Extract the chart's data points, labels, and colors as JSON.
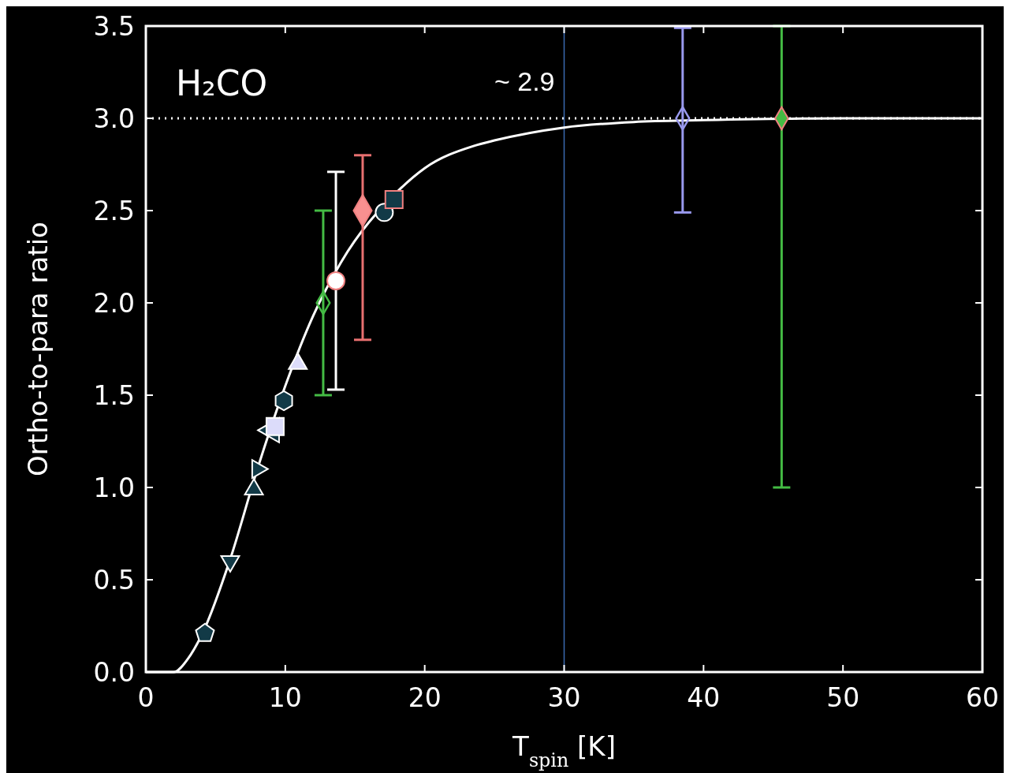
{
  "chart_data": {
    "type": "scatter",
    "xlabel": "T$_{spin}$ [K]",
    "ylabel": "Ortho-to-para ratio",
    "xlim": [
      0,
      60
    ],
    "ylim": [
      0,
      3.5
    ],
    "xticks": [
      0,
      10,
      20,
      30,
      40,
      50,
      60
    ],
    "yticks": [
      {
        "value": 0,
        "label": "0.0"
      },
      {
        "value": 0.5,
        "label": "0.5"
      },
      {
        "value": 1,
        "label": "1.0"
      },
      {
        "value": 1.5,
        "label": "1.5"
      },
      {
        "value": 2,
        "label": "2.0"
      },
      {
        "value": 2.5,
        "label": "2.5"
      },
      {
        "value": 3,
        "label": "3.0"
      },
      {
        "value": 3.5,
        "label": "3.5"
      }
    ],
    "grid": false,
    "annotations": [
      "H₂CO",
      {
        "text": "~ 2.9",
        "x": 30,
        "y": 3.2
      }
    ],
    "ref_lines": [
      {
        "axis": "y",
        "value": 3,
        "color": "#ffffff",
        "line_style": "dotted"
      },
      {
        "axis": "x",
        "value": 30,
        "color": "#3a6ab0",
        "line_style": "solid"
      }
    ],
    "series": [
      {
        "type": "line",
        "color": "#ffffff",
        "marker": "none",
        "line_style": "solid",
        "x": [
          0,
          2,
          3,
          4,
          6,
          8,
          10,
          12,
          14,
          18,
          20,
          23.5,
          25,
          30,
          35,
          40,
          50,
          60
        ],
        "values": [
          0,
          0,
          0.07,
          0.2,
          0.6,
          1.1,
          1.55,
          1.93,
          2.22,
          2.6,
          2.73,
          2.85,
          2.88,
          2.95,
          2.98,
          2.99,
          3,
          3
        ]
      },
      {
        "color": "#123a47",
        "x": [
          4.24
        ],
        "values": [
          0.21
        ]
      },
      {
        "color": "#123a47",
        "marker": "triangle-down",
        "x": [
          6.05
        ],
        "values": [
          0.6
        ]
      },
      {
        "color": "#123a47",
        "marker": "triangle",
        "x": [
          7.75
        ],
        "values": [
          0.99
        ]
      },
      {
        "color": "#123a47",
        "marker": "triangle-right",
        "x": [
          8.0
        ],
        "values": [
          1.1
        ]
      },
      {
        "color": "#123a47",
        "marker": "triangle-left",
        "x": [
          9.05
        ],
        "values": [
          1.31
        ]
      },
      {
        "color": "#dcdcfa",
        "marker": "square",
        "x": [
          9.27
        ],
        "values": [
          1.33
        ]
      },
      {
        "color": "#123a47",
        "x": [
          9.9
        ],
        "values": [
          1.47
        ]
      },
      {
        "color": "#dcdcfa",
        "marker": "triangle",
        "x": [
          10.9
        ],
        "values": [
          1.67
        ]
      },
      {
        "color": "#44bb44",
        "marker": "diamond",
        "x": [
          12.72
        ],
        "values": [
          2.0
        ],
        "errors": [
          [
            1.5,
            2.5
          ]
        ]
      },
      {
        "color": "#ffffff",
        "marker": "circle",
        "x": [
          13.63
        ],
        "values": [
          2.12
        ],
        "errors": [
          [
            1.53,
            2.71
          ]
        ]
      },
      {
        "color": "#123a47",
        "marker": "circle",
        "x": [
          17.1
        ],
        "values": [
          2.49
        ]
      },
      {
        "color": "#f89090",
        "marker": "diamond",
        "x": [
          15.55
        ],
        "values": [
          2.5
        ],
        "errors": [
          [
            1.8,
            2.8
          ]
        ]
      },
      {
        "color": "#123a47",
        "marker": "square",
        "x": [
          17.8
        ],
        "values": [
          2.56
        ]
      },
      {
        "color": "#9999ee",
        "marker": "diamond",
        "x": [
          38.5
        ],
        "values": [
          3.0
        ],
        "errors": [
          [
            2.49,
            3.49
          ]
        ]
      },
      {
        "color": "#44bb44",
        "marker": "diamond",
        "x": [
          45.6
        ],
        "values": [
          3.0
        ],
        "errors": [
          [
            1.0,
            3.5
          ]
        ]
      }
    ]
  }
}
